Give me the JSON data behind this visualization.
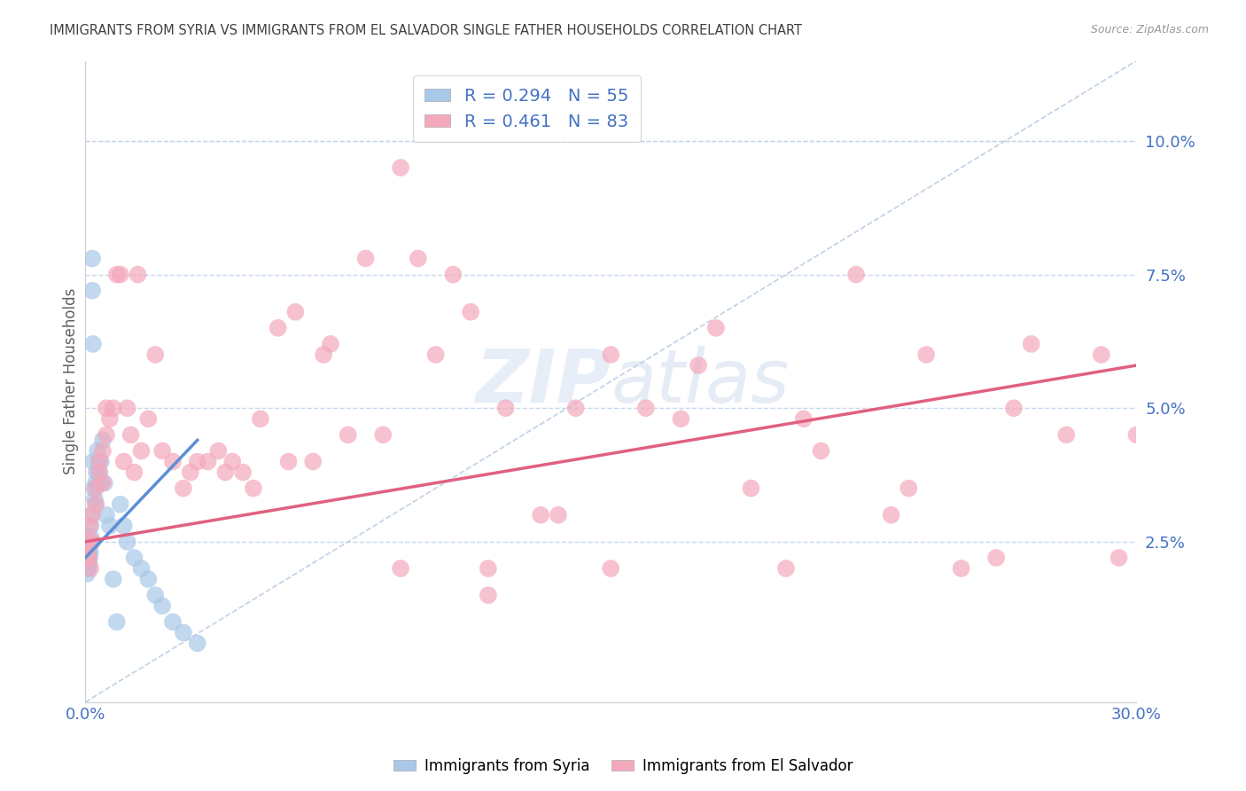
{
  "title": "IMMIGRANTS FROM SYRIA VS IMMIGRANTS FROM EL SALVADOR SINGLE FATHER HOUSEHOLDS CORRELATION CHART",
  "source": "Source: ZipAtlas.com",
  "ylabel": "Single Father Households",
  "xlim": [
    0.0,
    0.3
  ],
  "ylim": [
    -0.005,
    0.115
  ],
  "xticks": [
    0.0,
    0.05,
    0.1,
    0.15,
    0.2,
    0.25,
    0.3
  ],
  "xtick_labels": [
    "0.0%",
    "",
    "",
    "",
    "",
    "",
    "30.0%"
  ],
  "ytick_labels_right": [
    "2.5%",
    "5.0%",
    "7.5%",
    "10.0%"
  ],
  "yticks_right": [
    0.025,
    0.05,
    0.075,
    0.1
  ],
  "syria_color": "#a8c8e8",
  "el_salvador_color": "#f4a8bc",
  "syria_line_color": "#5b8fd5",
  "el_salvador_line_color": "#e06080",
  "reference_line_color": "#b8cce4",
  "watermark": "ZIPatlas",
  "legend_label_syria": "Immigrants from Syria",
  "legend_label_el_salvador": "Immigrants from El Salvador",
  "background_color": "#ffffff",
  "grid_color": "#c8d8ec",
  "title_color": "#404040",
  "axis_label_color": "#606060",
  "right_tick_color": "#4472c4",
  "bottom_tick_color": "#4472c4",
  "syria_x": [
    0.0002,
    0.0003,
    0.0004,
    0.0004,
    0.0005,
    0.0005,
    0.0006,
    0.0006,
    0.0007,
    0.0007,
    0.0008,
    0.0008,
    0.0009,
    0.0009,
    0.001,
    0.001,
    0.0012,
    0.0012,
    0.0013,
    0.0014,
    0.0015,
    0.0016,
    0.0017,
    0.0018,
    0.002,
    0.002,
    0.0022,
    0.0023,
    0.0025,
    0.0027,
    0.003,
    0.003,
    0.0032,
    0.0035,
    0.0038,
    0.004,
    0.0042,
    0.0045,
    0.005,
    0.0055,
    0.006,
    0.007,
    0.008,
    0.009,
    0.01,
    0.011,
    0.012,
    0.014,
    0.016,
    0.018,
    0.02,
    0.022,
    0.025,
    0.028,
    0.032
  ],
  "syria_y": [
    0.021,
    0.022,
    0.024,
    0.02,
    0.023,
    0.019,
    0.022,
    0.02,
    0.023,
    0.021,
    0.024,
    0.021,
    0.022,
    0.02,
    0.023,
    0.021,
    0.024,
    0.022,
    0.025,
    0.023,
    0.026,
    0.028,
    0.03,
    0.025,
    0.078,
    0.072,
    0.062,
    0.04,
    0.035,
    0.033,
    0.036,
    0.032,
    0.038,
    0.042,
    0.04,
    0.038,
    0.036,
    0.04,
    0.044,
    0.036,
    0.03,
    0.028,
    0.018,
    0.01,
    0.032,
    0.028,
    0.025,
    0.022,
    0.02,
    0.018,
    0.015,
    0.013,
    0.01,
    0.008,
    0.006
  ],
  "el_salvador_x": [
    0.0004,
    0.0006,
    0.0008,
    0.001,
    0.0012,
    0.0015,
    0.002,
    0.002,
    0.003,
    0.003,
    0.004,
    0.004,
    0.005,
    0.005,
    0.006,
    0.006,
    0.007,
    0.008,
    0.009,
    0.01,
    0.011,
    0.012,
    0.013,
    0.014,
    0.015,
    0.016,
    0.018,
    0.02,
    0.022,
    0.025,
    0.028,
    0.03,
    0.032,
    0.035,
    0.038,
    0.04,
    0.042,
    0.045,
    0.048,
    0.05,
    0.055,
    0.058,
    0.06,
    0.065,
    0.068,
    0.07,
    0.075,
    0.08,
    0.085,
    0.09,
    0.095,
    0.1,
    0.105,
    0.11,
    0.115,
    0.12,
    0.13,
    0.14,
    0.15,
    0.16,
    0.17,
    0.18,
    0.19,
    0.2,
    0.21,
    0.22,
    0.23,
    0.24,
    0.25,
    0.26,
    0.27,
    0.28,
    0.29,
    0.295,
    0.3,
    0.15,
    0.175,
    0.205,
    0.235,
    0.265,
    0.09,
    0.115,
    0.135
  ],
  "el_salvador_y": [
    0.022,
    0.025,
    0.024,
    0.022,
    0.028,
    0.02,
    0.03,
    0.025,
    0.035,
    0.032,
    0.038,
    0.04,
    0.036,
    0.042,
    0.05,
    0.045,
    0.048,
    0.05,
    0.075,
    0.075,
    0.04,
    0.05,
    0.045,
    0.038,
    0.075,
    0.042,
    0.048,
    0.06,
    0.042,
    0.04,
    0.035,
    0.038,
    0.04,
    0.04,
    0.042,
    0.038,
    0.04,
    0.038,
    0.035,
    0.048,
    0.065,
    0.04,
    0.068,
    0.04,
    0.06,
    0.062,
    0.045,
    0.078,
    0.045,
    0.095,
    0.078,
    0.06,
    0.075,
    0.068,
    0.02,
    0.05,
    0.03,
    0.05,
    0.02,
    0.05,
    0.048,
    0.065,
    0.035,
    0.02,
    0.042,
    0.075,
    0.03,
    0.06,
    0.02,
    0.022,
    0.062,
    0.045,
    0.06,
    0.022,
    0.045,
    0.06,
    0.058,
    0.048,
    0.035,
    0.05,
    0.02,
    0.015,
    0.03
  ]
}
